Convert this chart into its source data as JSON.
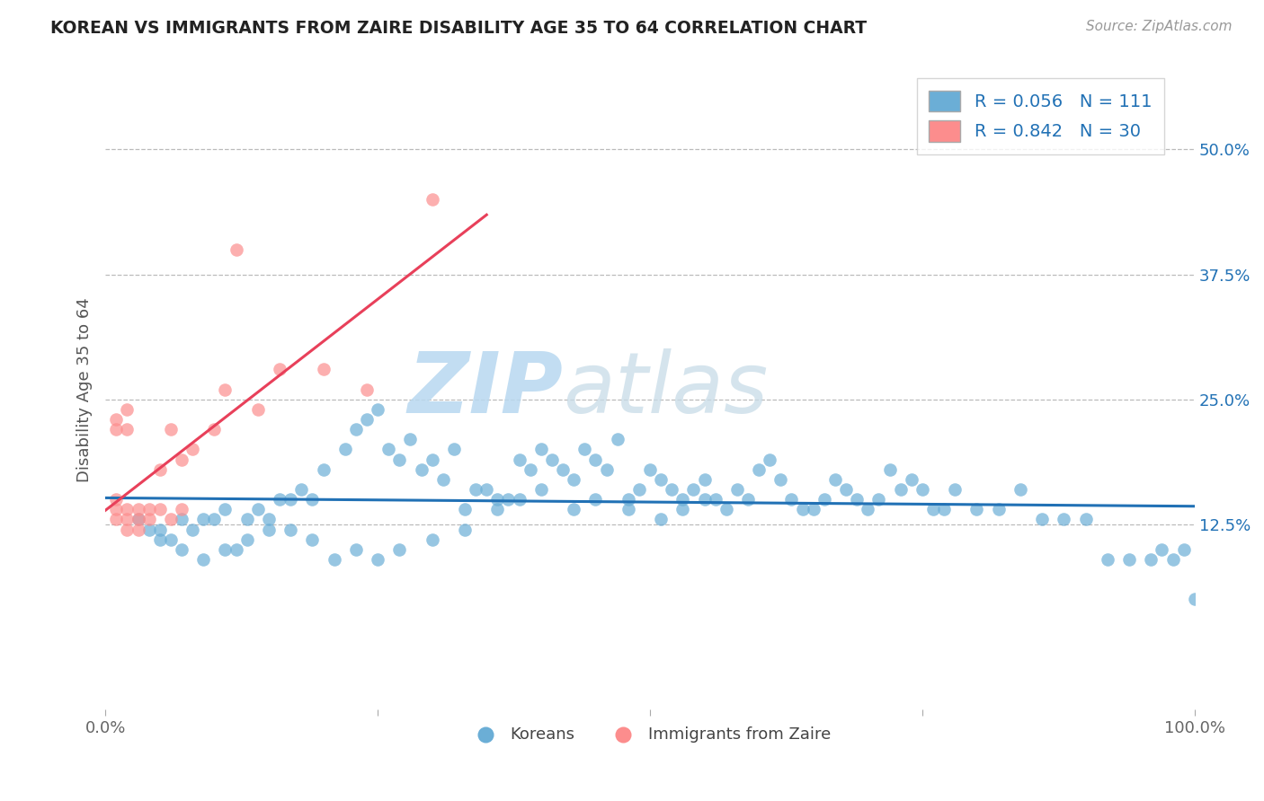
{
  "title": "KOREAN VS IMMIGRANTS FROM ZAIRE DISABILITY AGE 35 TO 64 CORRELATION CHART",
  "source": "Source: ZipAtlas.com",
  "ylabel": "Disability Age 35 to 64",
  "xlim": [
    0.0,
    1.0
  ],
  "ylim": [
    -0.06,
    0.58
  ],
  "xticks": [
    0.0,
    0.25,
    0.5,
    0.75,
    1.0
  ],
  "xticklabels": [
    "0.0%",
    "",
    "",
    "",
    "100.0%"
  ],
  "ytick_positions": [
    0.125,
    0.25,
    0.375,
    0.5
  ],
  "ytick_labels": [
    "12.5%",
    "25.0%",
    "37.5%",
    "50.0%"
  ],
  "korean_R": 0.056,
  "korean_N": 111,
  "zaire_R": 0.842,
  "zaire_N": 30,
  "korean_color": "#6baed6",
  "zaire_color": "#fc8d8d",
  "korean_line_color": "#2171b5",
  "zaire_line_color": "#e8405a",
  "background_color": "#ffffff",
  "watermark_zip": "ZIP",
  "watermark_atlas": "atlas",
  "legend_korean_label": "Koreans",
  "legend_zaire_label": "Immigrants from Zaire",
  "korean_x": [
    0.03,
    0.04,
    0.05,
    0.06,
    0.07,
    0.08,
    0.09,
    0.1,
    0.11,
    0.12,
    0.13,
    0.14,
    0.15,
    0.16,
    0.17,
    0.18,
    0.19,
    0.2,
    0.22,
    0.23,
    0.24,
    0.25,
    0.26,
    0.27,
    0.28,
    0.29,
    0.3,
    0.31,
    0.32,
    0.33,
    0.34,
    0.35,
    0.36,
    0.37,
    0.38,
    0.39,
    0.4,
    0.41,
    0.42,
    0.43,
    0.44,
    0.45,
    0.46,
    0.47,
    0.48,
    0.49,
    0.5,
    0.51,
    0.52,
    0.53,
    0.54,
    0.55,
    0.56,
    0.57,
    0.58,
    0.59,
    0.6,
    0.61,
    0.62,
    0.63,
    0.64,
    0.65,
    0.66,
    0.67,
    0.68,
    0.69,
    0.7,
    0.71,
    0.72,
    0.73,
    0.74,
    0.75,
    0.76,
    0.77,
    0.78,
    0.8,
    0.82,
    0.84,
    0.86,
    0.88,
    0.9,
    0.92,
    0.94,
    0.96,
    0.97,
    0.98,
    0.99,
    1.0,
    0.05,
    0.07,
    0.09,
    0.11,
    0.13,
    0.15,
    0.17,
    0.19,
    0.21,
    0.23,
    0.25,
    0.27,
    0.3,
    0.33,
    0.36,
    0.38,
    0.4,
    0.43,
    0.45,
    0.48,
    0.51,
    0.53,
    0.55
  ],
  "korean_y": [
    0.13,
    0.12,
    0.12,
    0.11,
    0.13,
    0.12,
    0.13,
    0.13,
    0.14,
    0.1,
    0.13,
    0.14,
    0.13,
    0.15,
    0.15,
    0.16,
    0.15,
    0.18,
    0.2,
    0.22,
    0.23,
    0.24,
    0.2,
    0.19,
    0.21,
    0.18,
    0.19,
    0.17,
    0.2,
    0.14,
    0.16,
    0.16,
    0.15,
    0.15,
    0.19,
    0.18,
    0.2,
    0.19,
    0.18,
    0.17,
    0.2,
    0.19,
    0.18,
    0.21,
    0.15,
    0.16,
    0.18,
    0.17,
    0.16,
    0.15,
    0.16,
    0.17,
    0.15,
    0.14,
    0.16,
    0.15,
    0.18,
    0.19,
    0.17,
    0.15,
    0.14,
    0.14,
    0.15,
    0.17,
    0.16,
    0.15,
    0.14,
    0.15,
    0.18,
    0.16,
    0.17,
    0.16,
    0.14,
    0.14,
    0.16,
    0.14,
    0.14,
    0.16,
    0.13,
    0.13,
    0.13,
    0.09,
    0.09,
    0.09,
    0.1,
    0.09,
    0.1,
    0.05,
    0.11,
    0.1,
    0.09,
    0.1,
    0.11,
    0.12,
    0.12,
    0.11,
    0.09,
    0.1,
    0.09,
    0.1,
    0.11,
    0.12,
    0.14,
    0.15,
    0.16,
    0.14,
    0.15,
    0.14,
    0.13,
    0.14,
    0.15
  ],
  "zaire_x": [
    0.01,
    0.01,
    0.01,
    0.01,
    0.01,
    0.02,
    0.02,
    0.02,
    0.02,
    0.02,
    0.03,
    0.03,
    0.03,
    0.04,
    0.04,
    0.05,
    0.05,
    0.06,
    0.06,
    0.07,
    0.07,
    0.08,
    0.1,
    0.11,
    0.12,
    0.14,
    0.16,
    0.2,
    0.24,
    0.3
  ],
  "zaire_y": [
    0.13,
    0.14,
    0.15,
    0.22,
    0.23,
    0.12,
    0.13,
    0.14,
    0.22,
    0.24,
    0.12,
    0.13,
    0.14,
    0.13,
    0.14,
    0.14,
    0.18,
    0.13,
    0.22,
    0.14,
    0.19,
    0.2,
    0.22,
    0.26,
    0.4,
    0.24,
    0.28,
    0.28,
    0.26,
    0.45
  ]
}
